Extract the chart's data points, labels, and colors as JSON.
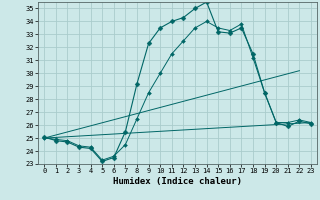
{
  "title": "",
  "xlabel": "Humidex (Indice chaleur)",
  "bg_color": "#cce8e8",
  "grid_color": "#aacccc",
  "line_color": "#006666",
  "xlim": [
    -0.5,
    23.5
  ],
  "ylim": [
    23,
    35.5
  ],
  "xticks": [
    0,
    1,
    2,
    3,
    4,
    5,
    6,
    7,
    8,
    9,
    10,
    11,
    12,
    13,
    14,
    15,
    16,
    17,
    18,
    19,
    20,
    21,
    22,
    23
  ],
  "yticks": [
    23,
    24,
    25,
    26,
    27,
    28,
    29,
    30,
    31,
    32,
    33,
    34,
    35
  ],
  "series_main": {
    "x": [
      0,
      1,
      2,
      3,
      4,
      5,
      6,
      7,
      8,
      9,
      10,
      11,
      12,
      13,
      14,
      15,
      16,
      17,
      18,
      19,
      20,
      21,
      22,
      23
    ],
    "y": [
      25.1,
      24.8,
      24.7,
      24.3,
      24.2,
      23.2,
      23.5,
      25.5,
      29.2,
      32.3,
      33.5,
      34.0,
      34.3,
      35.0,
      35.5,
      33.2,
      33.1,
      33.5,
      31.5,
      28.5,
      26.2,
      25.9,
      26.3,
      26.1
    ]
  },
  "series_second": {
    "x": [
      0,
      1,
      2,
      3,
      4,
      5,
      6,
      7,
      8,
      9,
      10,
      11,
      12,
      13,
      14,
      15,
      16,
      17,
      18,
      19,
      20,
      21,
      22,
      23
    ],
    "y": [
      25.0,
      24.9,
      24.8,
      24.4,
      24.3,
      23.3,
      23.6,
      24.5,
      26.5,
      28.5,
      30.0,
      31.5,
      32.5,
      33.5,
      34.0,
      33.5,
      33.3,
      33.8,
      31.2,
      28.5,
      26.2,
      26.2,
      26.4,
      26.2
    ]
  },
  "line_upper": {
    "x": [
      0,
      22
    ],
    "y": [
      25.0,
      30.2
    ]
  },
  "line_lower": {
    "x": [
      0,
      23
    ],
    "y": [
      25.0,
      26.2
    ]
  }
}
